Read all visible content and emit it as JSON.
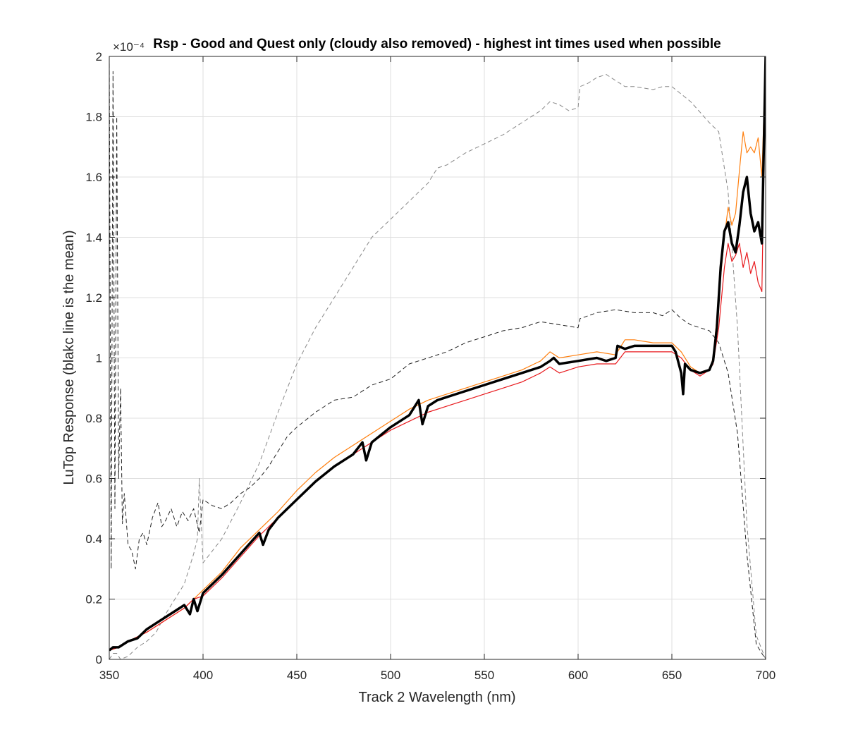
{
  "chart_data": {
    "type": "line",
    "title": "Rsp - Good and Quest only (cloudy also removed) - highest int times used when possible",
    "xlabel": "Track 2 Wavelength (nm)",
    "ylabel": "LuTop Response (blakc line is the mean)",
    "y_exponent_label": "×10⁻⁴",
    "xlim": [
      350,
      700
    ],
    "ylim": [
      0,
      2
    ],
    "xticks": [
      350,
      400,
      450,
      500,
      550,
      600,
      650,
      700
    ],
    "yticks": [
      0,
      0.2,
      0.4,
      0.6,
      0.8,
      1,
      1.2,
      1.4,
      1.6,
      1.8,
      2
    ],
    "ytick_labels": [
      "0",
      "0.2",
      "0.4",
      "0.6",
      "0.8",
      "1",
      "1.2",
      "1.4",
      "1.6",
      "1.8",
      "2"
    ],
    "grid": true,
    "series": [
      {
        "style": "dashed",
        "color": "#888888",
        "width": 1,
        "x": [
          350,
          352,
          354,
          356,
          360,
          365,
          370,
          375,
          380,
          385,
          390,
          395,
          397,
          398,
          400,
          410,
          420,
          430,
          440,
          450,
          460,
          470,
          480,
          490,
          500,
          510,
          520,
          525,
          530,
          540,
          550,
          560,
          570,
          580,
          585,
          590,
          595,
          600,
          601,
          605,
          610,
          615,
          620,
          625,
          630,
          640,
          645,
          650,
          660,
          670,
          675,
          680,
          685,
          690,
          695,
          700
        ],
        "y": [
          0.0,
          0.02,
          0.02,
          0.0,
          0.01,
          0.04,
          0.06,
          0.09,
          0.15,
          0.2,
          0.25,
          0.35,
          0.4,
          0.6,
          0.32,
          0.4,
          0.52,
          0.65,
          0.82,
          0.98,
          1.1,
          1.2,
          1.3,
          1.4,
          1.46,
          1.52,
          1.58,
          1.63,
          1.64,
          1.68,
          1.71,
          1.74,
          1.78,
          1.82,
          1.85,
          1.84,
          1.82,
          1.83,
          1.9,
          1.91,
          1.93,
          1.94,
          1.92,
          1.9,
          1.9,
          1.89,
          1.9,
          1.9,
          1.85,
          1.78,
          1.75,
          1.55,
          1.1,
          0.45,
          0.08,
          0.0
        ]
      },
      {
        "style": "dashed",
        "color": "#222222",
        "width": 1,
        "x": [
          350,
          351,
          352,
          353,
          354,
          355,
          356,
          357,
          358,
          360,
          362,
          364,
          366,
          368,
          370,
          373,
          376,
          378,
          380,
          383,
          386,
          389,
          392,
          395,
          398,
          400,
          405,
          410,
          415,
          420,
          425,
          430,
          435,
          440,
          445,
          450,
          460,
          470,
          480,
          490,
          500,
          510,
          520,
          530,
          540,
          550,
          560,
          570,
          580,
          590,
          600,
          601,
          610,
          620,
          630,
          640,
          645,
          650,
          655,
          660,
          665,
          670,
          675,
          680,
          685,
          690,
          695,
          700
        ],
        "y": [
          2.0,
          0.3,
          1.95,
          0.5,
          1.8,
          0.6,
          0.9,
          0.45,
          0.55,
          0.38,
          0.36,
          0.3,
          0.4,
          0.42,
          0.38,
          0.47,
          0.52,
          0.44,
          0.46,
          0.5,
          0.44,
          0.49,
          0.46,
          0.5,
          0.42,
          0.53,
          0.51,
          0.5,
          0.52,
          0.55,
          0.57,
          0.6,
          0.64,
          0.69,
          0.74,
          0.77,
          0.82,
          0.86,
          0.87,
          0.91,
          0.93,
          0.98,
          1.0,
          1.02,
          1.05,
          1.07,
          1.09,
          1.1,
          1.12,
          1.11,
          1.1,
          1.13,
          1.15,
          1.16,
          1.15,
          1.15,
          1.14,
          1.16,
          1.13,
          1.11,
          1.1,
          1.09,
          1.05,
          0.95,
          0.75,
          0.35,
          0.05,
          0.0
        ]
      },
      {
        "style": "solid",
        "color": "#ff7f0e",
        "width": 1.2,
        "x": [
          350,
          355,
          360,
          370,
          380,
          390,
          395,
          400,
          410,
          420,
          430,
          440,
          450,
          460,
          470,
          480,
          490,
          500,
          510,
          520,
          530,
          540,
          550,
          560,
          570,
          580,
          585,
          590,
          600,
          610,
          620,
          625,
          630,
          640,
          650,
          655,
          660,
          665,
          670,
          672,
          675,
          678,
          680,
          682,
          684,
          686,
          688,
          690,
          692,
          694,
          696,
          698,
          700
        ],
        "y": [
          0.03,
          0.04,
          0.06,
          0.09,
          0.13,
          0.17,
          0.2,
          0.23,
          0.29,
          0.37,
          0.43,
          0.49,
          0.56,
          0.62,
          0.67,
          0.71,
          0.75,
          0.79,
          0.83,
          0.86,
          0.88,
          0.9,
          0.92,
          0.94,
          0.96,
          0.99,
          1.02,
          1.0,
          1.01,
          1.02,
          1.01,
          1.06,
          1.06,
          1.05,
          1.05,
          1.02,
          0.97,
          0.95,
          0.96,
          1.0,
          1.2,
          1.4,
          1.5,
          1.44,
          1.48,
          1.62,
          1.75,
          1.68,
          1.7,
          1.68,
          1.73,
          1.6,
          2.0
        ]
      },
      {
        "style": "solid",
        "color": "#e8191d",
        "width": 1.2,
        "x": [
          350,
          355,
          360,
          370,
          380,
          390,
          395,
          400,
          410,
          420,
          430,
          440,
          450,
          460,
          470,
          480,
          490,
          500,
          510,
          520,
          530,
          540,
          550,
          560,
          570,
          580,
          585,
          590,
          600,
          610,
          620,
          625,
          630,
          640,
          650,
          655,
          660,
          665,
          670,
          672,
          675,
          678,
          680,
          682,
          684,
          686,
          688,
          690,
          692,
          694,
          696,
          698,
          700
        ],
        "y": [
          0.03,
          0.04,
          0.06,
          0.09,
          0.13,
          0.17,
          0.2,
          0.21,
          0.27,
          0.34,
          0.41,
          0.47,
          0.53,
          0.59,
          0.64,
          0.68,
          0.72,
          0.76,
          0.79,
          0.82,
          0.84,
          0.86,
          0.88,
          0.9,
          0.92,
          0.95,
          0.97,
          0.95,
          0.97,
          0.98,
          0.98,
          1.02,
          1.02,
          1.02,
          1.02,
          1.0,
          0.96,
          0.94,
          0.96,
          0.98,
          1.1,
          1.3,
          1.38,
          1.32,
          1.34,
          1.38,
          1.3,
          1.35,
          1.28,
          1.32,
          1.25,
          1.22,
          2.0
        ]
      },
      {
        "style": "solid",
        "color": "#000000",
        "width": 3.5,
        "x": [
          350,
          352,
          355,
          360,
          365,
          370,
          375,
          380,
          385,
          390,
          393,
          395,
          397,
          400,
          405,
          410,
          420,
          430,
          432,
          435,
          440,
          450,
          460,
          470,
          480,
          485,
          487,
          490,
          500,
          510,
          515,
          517,
          520,
          525,
          530,
          540,
          550,
          560,
          570,
          580,
          585,
          587,
          590,
          600,
          610,
          615,
          620,
          621,
          625,
          630,
          640,
          650,
          652,
          655,
          656,
          657,
          660,
          665,
          670,
          672,
          674,
          676,
          678,
          680,
          682,
          684,
          686,
          688,
          690,
          692,
          694,
          696,
          698,
          700
        ],
        "y": [
          0.03,
          0.04,
          0.04,
          0.06,
          0.07,
          0.1,
          0.12,
          0.14,
          0.16,
          0.18,
          0.15,
          0.2,
          0.16,
          0.22,
          0.25,
          0.28,
          0.35,
          0.42,
          0.38,
          0.43,
          0.47,
          0.53,
          0.59,
          0.64,
          0.68,
          0.72,
          0.66,
          0.72,
          0.77,
          0.81,
          0.86,
          0.78,
          0.84,
          0.86,
          0.87,
          0.89,
          0.91,
          0.93,
          0.95,
          0.97,
          0.99,
          1.0,
          0.98,
          0.99,
          1.0,
          0.99,
          1.0,
          1.04,
          1.03,
          1.04,
          1.04,
          1.04,
          1.02,
          0.95,
          0.88,
          0.98,
          0.96,
          0.95,
          0.96,
          0.99,
          1.1,
          1.3,
          1.42,
          1.45,
          1.38,
          1.35,
          1.44,
          1.55,
          1.6,
          1.48,
          1.42,
          1.45,
          1.38,
          2.0
        ]
      }
    ]
  }
}
